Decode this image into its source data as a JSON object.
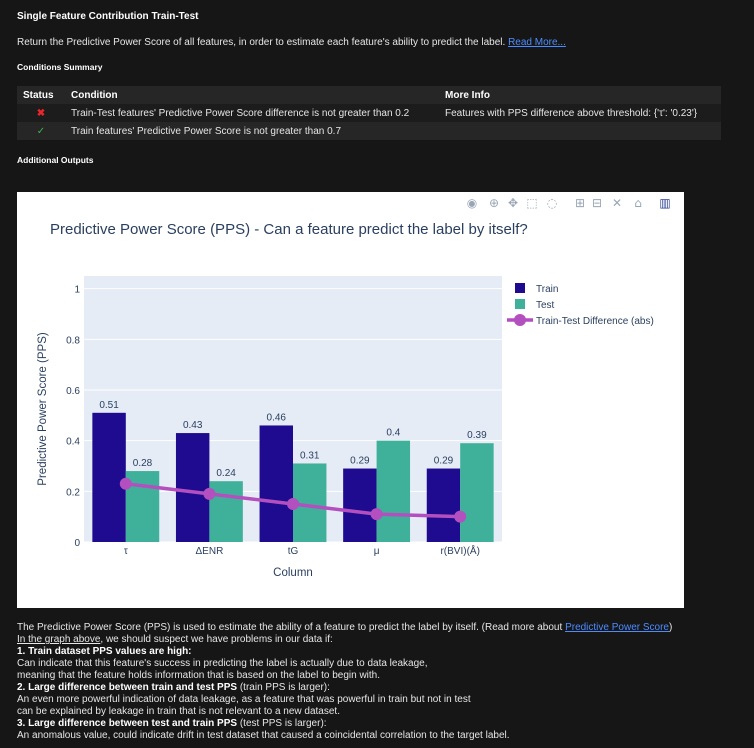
{
  "check": {
    "title": "Single Feature Contribution Train-Test",
    "description": "Return the Predictive Power Score of all features, in order to estimate each feature's ability to predict the label.",
    "read_more": "Read More...",
    "conditions_heading": "Conditions Summary",
    "additional_heading": "Additional Outputs"
  },
  "conditions": {
    "headers": [
      "Status",
      "Condition",
      "More Info"
    ],
    "rows": [
      {
        "status": "fail",
        "condition": "Train-Test features' Predictive Power Score difference is not greater than 0.2",
        "more_info": "Features with PPS difference above threshold: {'τ': '0.23'}"
      },
      {
        "status": "pass",
        "condition": "Train features' Predictive Power Score is not greater than 0.7",
        "more_info": ""
      }
    ]
  },
  "chart_data": {
    "type": "bar",
    "title": "Predictive Power Score (PPS) - Can a feature predict the label by itself?",
    "xlabel": "Column",
    "ylabel": "Predictive Power Score (PPS)",
    "ylim": [
      0,
      1.05
    ],
    "yticks": [
      "0",
      "0.2",
      "0.4",
      "0.6",
      "0.8",
      "1"
    ],
    "categories": [
      "τ",
      "ΔENR",
      "tG",
      "μ",
      "r(BVI)(Å)"
    ],
    "series": [
      {
        "name": "Train",
        "type": "bar",
        "color": "#1e0b8f",
        "values": [
          0.51,
          0.43,
          0.46,
          0.29,
          0.29
        ],
        "labels": [
          "0.51",
          "0.43",
          "0.46",
          "0.29",
          "0.29"
        ]
      },
      {
        "name": "Test",
        "type": "bar",
        "color": "#3fb09a",
        "values": [
          0.28,
          0.24,
          0.31,
          0.4,
          0.39
        ],
        "labels": [
          "0.28",
          "0.24",
          "0.31",
          "0.4",
          "0.39"
        ]
      },
      {
        "name": "Train-Test Difference (abs)",
        "type": "line",
        "color": "#b44fc0",
        "values": [
          0.23,
          0.19,
          0.15,
          0.11,
          0.1
        ]
      }
    ],
    "legend": "top-right",
    "plot_bg": "#e5ecf6",
    "grid": true
  },
  "footer": {
    "intro": "The Predictive Power Score (PPS) is used to estimate the ability of a feature to predict the label by itself. (Read more about",
    "intro_link": "Predictive Power Score",
    "intro_end": ")",
    "line2_link": "In the graph above",
    "line2_rest": ", we should suspect we have problems in our data if:",
    "p1_title": "1. Train dataset PPS values are high:",
    "p1_a": "Can indicate that this feature's success in predicting the label is actually due to data leakage,",
    "p1_b": "meaning that the feature holds information that is based on the label to begin with.",
    "p2_title": "2. Large difference between train and test PPS",
    "p2_suffix": " (train PPS is larger):",
    "p2_a": "An even more powerful indication of data leakage, as a feature that was powerful in train but not in test",
    "p2_b": "can be explained by leakage in train that is not relevant to a new dataset.",
    "p3_title": "3. Large difference between test and train PPS",
    "p3_suffix": " (test PPS is larger):",
    "p3_a": "An anomalous value, could indicate drift in test dataset that caused a coincidental correlation to the target label."
  },
  "modebar": [
    "camera-icon",
    "zoom-icon",
    "pan-icon",
    "box-select-icon",
    "lasso-icon",
    "zoom-in-icon",
    "zoom-out-icon",
    "autoscale-icon",
    "reset-axes-icon",
    "plotly-logo-icon"
  ]
}
